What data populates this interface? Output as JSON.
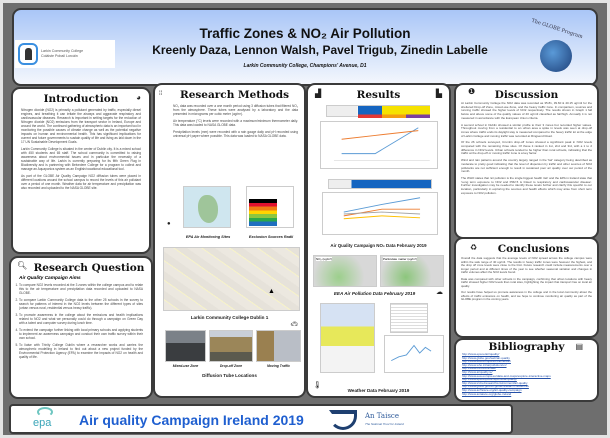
{
  "header": {
    "title": "Traffic Zones & NO₂ Air Pollution",
    "authors": "Kreenly Daza, Lennon Walsh, Pavel Trigub, Zinedin Labelle",
    "school": "Larkin Community College, Champions' Avenue, D1",
    "logo_left_line1": "Larkin Community College",
    "logo_left_line2": "Coláiste Pobail Lorcáin",
    "logo_right": "The GLOBE Program"
  },
  "introduction": {
    "title": "Introduction",
    "paragraphs": [
      "Nitrogen dioxide (NO2) is primarily a pollutant generated by traffic, especially diesel engines, and breathing it can irritate the airways and aggravate respiratory and cardiovascular diseases. Research is important in setting targets for the reduction of Nitrogen dioxide (NO2) emissions from the transport sector in Ireland, Europe and around the world. The continued gathering of atmospheric data is an important tool in monitoring the possible causes of climate change as well as the potential negative impacts on human and environmental health. This has significant implications for current and future governments to sustain quality of life and living as laid down in the 17 UN Sustainable Development Goals.",
      "Larkin Community College is situated in the center of Dublin city. It is a mixed school with 450 students and 65 staff. The school community is committed to raising awareness about environmental issues and in particular the necessity of a sustainable way of life. Larkin is currently preparing for its fifth Green Flag in Biodiversity and is partnering with Belvedere College for a program to collect and manage an Aquaponics system as an English/vocational educational tool.",
      "As part of the GLOBE Air Quality Campaign NO2 diffusion tubes were placed in different locations around the school campus to record the levels of this air pollutant over a period of one month. Weather data for air temperature and precipitation was also recorded and uploaded to the NASA GLOBE site."
    ]
  },
  "research_question": {
    "title": "Research Question",
    "subtitle": "Air Quality Campaign Aims",
    "items": [
      "To compare NO2 levels recorded at the 3 zones within the college campus and to relate this to the air temperature and precipitation data recorded and uploaded to NASA GLOBE.",
      "To compare Larkin Community College data to the other 25 schools in the survey to search for patterns of interest in the NO2 levels between the different types of sites (urban versus rural, residential versus heavy traffic).",
      "To promote awareness in the college about the emissions and health implications related to NO2 and what we personally could do through a campaign on Green Day with a talent and computer survey during lunch time.",
      "To extend the campaign further linking with local primary schools and applying students to implement an awareness campaign and conduct their own traffic survey within their own school.",
      "To liaise with Trinity College Dublin where a researcher works and carries the atmospheric modelling in Ireland to find out about a new project funded by the Environmental Protection Agency (EPA) to examine the impacts of NO2 on health and quality of life."
    ]
  },
  "research_methods": {
    "title": "Research Methods",
    "paragraphs": [
      "NO₂ data was recorded over a one month period using 3 diffusion tubes that filtered NO₂ from the atmosphere. These tubes were analysed by a laboratory and the data presented in micrograms per cubic meter (ug/m³).",
      "Air temperature (°C) levels were recorded with a maximum/minimum thermometer daily. This data was loaded to NASA GLOBE data.",
      "Precipitation levels (mm) were recorded with a rain gauge daily and pH recorded using universal pH paper where possible. This data was loaded to NASA GLOBE data."
    ],
    "fig1_caption": "EPA Air Monitoring Sites",
    "fig2_caption": "Exclusion Sources Radii",
    "map_caption": "Larkin Community College Dublin 1",
    "photos": [
      "Mixed-use Zone",
      "Drop-off Zone",
      "Moving Traffic"
    ],
    "photos_caption": "Diffusion Tube Locations"
  },
  "results": {
    "title": "Results",
    "caption1": "Air Quality Campaign NO₂ Data February 2019",
    "caption2": "EEA Air Pollution Data February 2019",
    "caption3": "Weather Data February 2019",
    "map_label_1": "NO₂ (ug/m³)",
    "map_label_2": "Particulate matter (ug/m³)"
  },
  "discussion": {
    "title": "Discussion",
    "paragraphs": [
      "At Larkin Community College the NO2 data was recorded as 35.81, 39.60 & 40.15 ug/m3 for the sheltered Drop-off Zone, mixed-use Zone, and the heavy traffic zone. In comparison, sources and running traffic showed the higher levels of NO2 respectively. The results shown in Graph 1 fall below and above some of the quality values of 40 ug/m3 classified as fair/high. Annually it is not measured in accordance with the European Union criteria.",
      "A second school in Dublin showed a similar profile to their 3 zones but recorded higher values. Throughout moving from a residential to an urban area a spike in levels was seen at drop-off zones where traffic ends its daylight stay is measured compared to the heavy traffic lot at the edge of Larkin College and moving traffic was recorded at Ringsend Road.",
      "Of the 26 schools surveyed, Crumlin drop-off zones showed a significant peak in NO2 levels compared with the remaining three sites. Of these it ranked in 1st, 2nd and 3rd, with a 1 to 2 difference in NO2 levels. Urban schools tended to be higher than rural schools, indicating that the traffic at the drop-off or moving traffic zone is a key factor.",
      "Wind and rain patterns around the country largely ranged in the 'fair' category being described as moderate to pretty good indicating that the level of dispersion by traffic and other sources of NO2 pollutants are not sufficient enough to result in sustained poor air quality over our period of the month.",
      "The WHO states that 'air pollution is the single biggest health risk' and the EPA in Ireland state that 'Long term exposure to NO2 and PM2.5 is linked to respiratory and cardiovascular disease'. Further investigation may be needed to identify these levels further and clarify this specific to our location, particularly in exploring the sources and health effects which may arise from short term exposure to NO2 pollution."
    ]
  },
  "conclusions": {
    "title": "Conclusions",
    "paragraphs": [
      "Overall the data suggests that the average levels of NO2 spread across the college campus were within the safe range of 40 ug/m3. The results in heavy traffic zones were however the highest, and the drop off zone levels were close to the limit. Future research could include measurements over a longer period and at different times of the year to see whether seasonal variation and changes in traffic volumes affect the NO2 levels found.",
      "Data was compared with other schools in the campaign, confirming that urban locations with heavy traffic showed higher NO2 levels than rural sites, highlighting the impact that transport has on local air quality.",
      "Our results have helped us promote awareness in the college and in the local community about the effects of traffic emissions on health, and we hope to continue monitoring air quality as part of the GLOBE program in the coming years."
    ]
  },
  "bibliography": {
    "title": "Bibliography",
    "links": [
      "http://www.epa.ie/air/quality/",
      "http://www.globe.gov/web/air-quality",
      "http://www.eea.europa.eu/themes/air",
      "http://www.who.int/airpollution/en/",
      "http://www.met.ie/climate/",
      "http://www.airquality.ie/",
      "http://www.eea.europa.eu/data-and-maps/explore-interactive-maps",
      "http://www.epa.ie/pubs/reports/air/quality/",
      "http://www.tcd.ie/research/environment/air-quality",
      "http://www.globe.gov/do-globe/research-resources",
      "http://www.anTaisce.org/air-quality-campaign",
      "http://www.antaisce.org/globe-ireland"
    ]
  },
  "footer": {
    "title": "Air quality Campaign Ireland 2019",
    "epa_logo": "epa",
    "taisce_name": "An Taisce",
    "taisce_tagline": "The National Trust for Ireland"
  }
}
